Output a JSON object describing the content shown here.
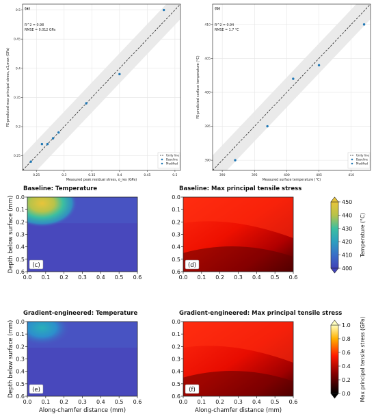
{
  "chart_data": [
    {
      "type": "scatter",
      "panel_label": "(a)",
      "title": "",
      "xlabel": "Measured peak residual stress, σ_res (GPa)",
      "ylabel": "FE-predicted max principal stress, σ1,max (GPa)",
      "xlim": [
        0.225,
        0.51
      ],
      "ylim": [
        0.225,
        0.51
      ],
      "xticks": [
        "0.25",
        "0.3",
        "0.35",
        "0.4",
        "0.45",
        "0.5"
      ],
      "yticks": [
        "0.25",
        "0.3",
        "0.35",
        "0.4",
        "0.45",
        "0.5"
      ],
      "annotation": [
        "R^2 = 0.98",
        "RMSE = 0.012 GPa"
      ],
      "grid": true,
      "band": "shaded tolerance band around unity line",
      "legend": {
        "position": "bottom-right",
        "entries": [
          "Unity line",
          "Baseline",
          "Modified"
        ]
      },
      "series": [
        {
          "name": "Baseline",
          "color": "#1f77b4",
          "x": [
            0.24,
            0.26,
            0.27,
            0.28,
            0.34,
            0.4
          ],
          "y": [
            0.24,
            0.27,
            0.27,
            0.28,
            0.34,
            0.39
          ]
        },
        {
          "name": "Modified",
          "color": "#1f77b4",
          "x": [
            0.29,
            0.48
          ],
          "y": [
            0.29,
            0.5
          ]
        }
      ],
      "unity_line": true
    },
    {
      "type": "scatter",
      "panel_label": "(b)",
      "title": "",
      "xlabel": "Measured surface temperature (°C)",
      "ylabel": "FE-predicted surface temperature (°C)",
      "xlim": [
        388.5,
        413
      ],
      "ylim": [
        388.5,
        413
      ],
      "xticks": [
        "390",
        "395",
        "400",
        "405",
        "410"
      ],
      "yticks": [
        "390",
        "395",
        "400",
        "405",
        "410"
      ],
      "annotation": [
        "R^2 = 0.94",
        "RMSE = 1.7 °C"
      ],
      "grid": true,
      "legend": {
        "position": "bottom-right",
        "entries": [
          "Unity line",
          "Baseline",
          "Modified"
        ]
      },
      "series": [
        {
          "name": "Baseline",
          "color": "#1f77b4",
          "x": [
            392,
            397,
            401,
            405
          ],
          "y": [
            390,
            395,
            402,
            404
          ]
        },
        {
          "name": "Modified",
          "color": "#1f77b4",
          "x": [
            412
          ],
          "y": [
            410
          ]
        }
      ],
      "unity_line": true
    },
    {
      "type": "heatmap",
      "panel_label": "(c)",
      "title": "Baseline: Temperature",
      "xlabel": "",
      "ylabel": "Depth below surface (mm)",
      "xlim": [
        0,
        0.6
      ],
      "ylim": [
        0.6,
        0.0
      ],
      "xticks": [
        "0.0",
        "0.1",
        "0.2",
        "0.3",
        "0.4",
        "0.5",
        "0.6"
      ],
      "yticks": [
        "0.0",
        "0.1",
        "0.2",
        "0.3",
        "0.4",
        "0.5",
        "0.6"
      ],
      "colormap": "viridis-like",
      "value_range": [
        400,
        450
      ],
      "hotspot": {
        "x": 0.08,
        "y": 0.05,
        "peak": 448
      }
    },
    {
      "type": "heatmap",
      "panel_label": "(d)",
      "title": "Baseline: Max principal tensile stress",
      "xlabel": "",
      "ylabel": "",
      "xlim": [
        0,
        0.6
      ],
      "ylim": [
        0.6,
        0.0
      ],
      "xticks": [
        "0.0",
        "0.1",
        "0.2",
        "0.3",
        "0.4",
        "0.5",
        "0.6"
      ],
      "yticks": [
        "0.0",
        "0.1",
        "0.2",
        "0.3",
        "0.4",
        "0.5",
        "0.6"
      ],
      "colormap": "hot",
      "value_range": [
        0.0,
        1.0
      ]
    },
    {
      "type": "heatmap",
      "panel_label": "(e)",
      "title": "Gradient-engineered: Temperature",
      "xlabel": "Along-chamfer distance (mm)",
      "ylabel": "Depth below surface (mm)",
      "xlim": [
        0,
        0.6
      ],
      "ylim": [
        0.6,
        0.0
      ],
      "xticks": [
        "0.0",
        "0.1",
        "0.2",
        "0.3",
        "0.4",
        "0.5",
        "0.6"
      ],
      "yticks": [
        "0.0",
        "0.1",
        "0.2",
        "0.3",
        "0.4",
        "0.5",
        "0.6"
      ],
      "colormap": "viridis-like",
      "value_range": [
        400,
        450
      ],
      "hotspot": {
        "x": 0.08,
        "y": 0.05,
        "peak": 422
      }
    },
    {
      "type": "heatmap",
      "panel_label": "(f)",
      "title": "Gradient-engineered: Max principal tensile stress",
      "xlabel": "Along-chamfer distance (mm)",
      "ylabel": "",
      "xlim": [
        0,
        0.6
      ],
      "ylim": [
        0.6,
        0.0
      ],
      "xticks": [
        "0.0",
        "0.1",
        "0.2",
        "0.3",
        "0.4",
        "0.5",
        "0.6"
      ],
      "yticks": [
        "0.0",
        "0.1",
        "0.2",
        "0.3",
        "0.4",
        "0.5",
        "0.6"
      ],
      "colormap": "hot",
      "value_range": [
        0.0,
        1.0
      ]
    }
  ],
  "colorbars": [
    {
      "label": "Temperature (°C)",
      "ticks": [
        "400",
        "410",
        "420",
        "430",
        "440",
        "450"
      ],
      "min": 400,
      "max": 450
    },
    {
      "label": "Max principal tensile stress (GPa)",
      "ticks": [
        "0.0",
        "0.2",
        "0.4",
        "0.6",
        "0.8",
        "1.0"
      ],
      "min": 0,
      "max": 1
    }
  ],
  "colors": {
    "scatter_point": "#1f77b4",
    "band": "#e8e8e8",
    "grid": "#e5e5e5"
  }
}
